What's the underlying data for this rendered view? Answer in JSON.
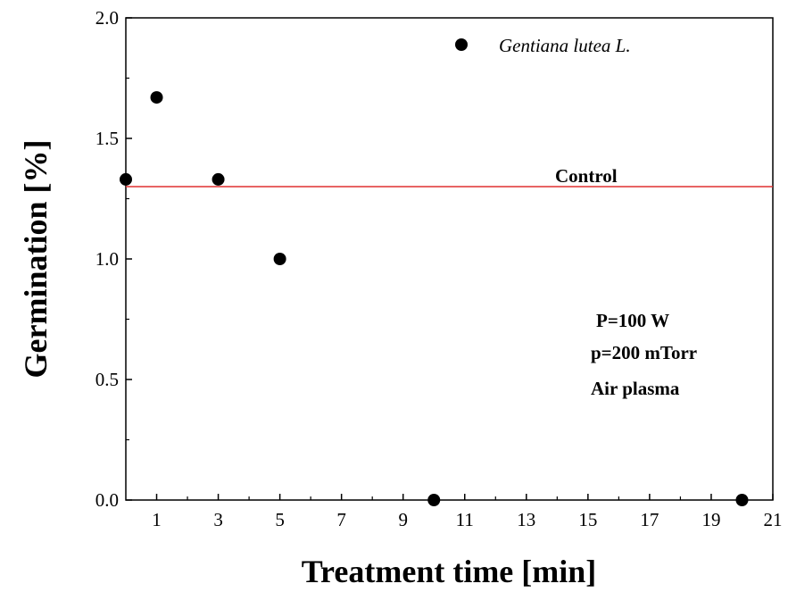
{
  "chart_data": {
    "type": "scatter",
    "xlabel": "Treatment time [min]",
    "ylabel": "Germination [%]",
    "xlim": [
      0,
      21
    ],
    "ylim": [
      0,
      2.0
    ],
    "x_ticks": [
      1,
      3,
      5,
      7,
      9,
      11,
      13,
      15,
      17,
      19,
      21
    ],
    "y_ticks": [
      0.0,
      0.5,
      1.0,
      1.5,
      2.0
    ],
    "y_tick_labels": [
      "0.0",
      "0.5",
      "1.0",
      "1.5",
      "2.0"
    ],
    "grid": false,
    "legend_position": "top-right",
    "series": [
      {
        "name": "Gentiana lutea L.",
        "color": "#000000",
        "x": [
          0,
          1,
          3,
          5,
          10,
          20
        ],
        "y": [
          1.33,
          1.67,
          1.33,
          1.0,
          0.0,
          0.0
        ]
      }
    ],
    "reference_line": {
      "label": "Control",
      "y": 1.3,
      "color": "#e03030"
    },
    "annotations": [
      "P=100 W",
      "p=200 mTorr",
      "Air plasma"
    ]
  }
}
